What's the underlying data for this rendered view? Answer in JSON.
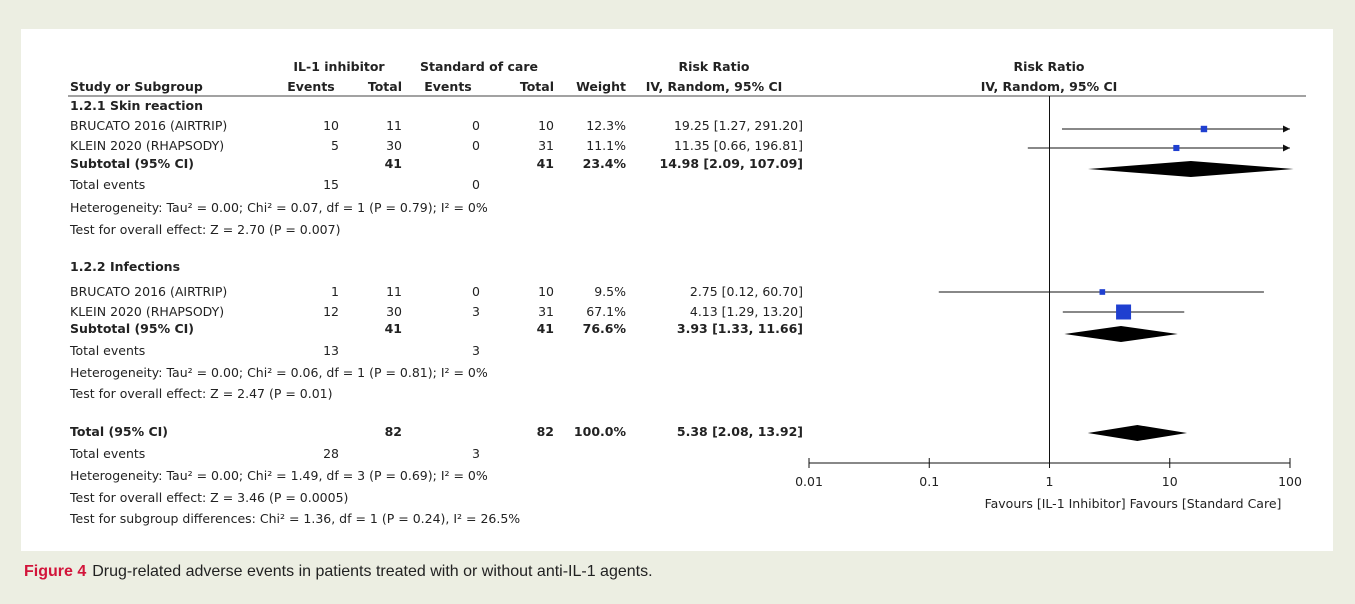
{
  "figure": {
    "label": "Figure 4",
    "caption": "Drug-related adverse events in patients treated with or without anti-IL-1 agents."
  },
  "table": {
    "header_groups": {
      "experimental": "IL-1 inhibitor",
      "control": "Standard of care",
      "effect": "Risk Ratio",
      "plot": "Risk Ratio"
    },
    "headers": {
      "study": "Study or Subgroup",
      "events": "Events",
      "total": "Total",
      "weight": "Weight",
      "method": "IV, Random, 95% CI",
      "plot_method": "IV, Random, 95% CI"
    },
    "groups": [
      {
        "title": "1.2.1 Skin reaction",
        "studies": [
          {
            "name": "BRUCATO 2016 (AIRTRIP)",
            "exp_events": "10",
            "exp_total": "11",
            "ctrl_events": "0",
            "ctrl_total": "10",
            "weight": "12.3%",
            "ci_text": "19.25 [1.27, 291.20]"
          },
          {
            "name": "KLEIN 2020 (RHAPSODY)",
            "exp_events": "5",
            "exp_total": "30",
            "ctrl_events": "0",
            "ctrl_total": "31",
            "weight": "11.1%",
            "ci_text": "11.35 [0.66, 196.81]"
          }
        ],
        "subtotal": {
          "label": "Subtotal (95% CI)",
          "exp_total": "41",
          "ctrl_total": "41",
          "weight": "23.4%",
          "ci_text": "14.98 [2.09, 107.09]"
        },
        "events": {
          "label": "Total events",
          "exp": "15",
          "ctrl": "0"
        },
        "heterogeneity": "Heterogeneity: Tau² = 0.00; Chi² = 0.07, df = 1 (P = 0.79); I² = 0%",
        "overall": "Test for overall effect: Z = 2.70 (P = 0.007)"
      },
      {
        "title": "1.2.2 Infections",
        "studies": [
          {
            "name": "BRUCATO 2016 (AIRTRIP)",
            "exp_events": "1",
            "exp_total": "11",
            "ctrl_events": "0",
            "ctrl_total": "10",
            "weight": "9.5%",
            "ci_text": "2.75 [0.12, 60.70]"
          },
          {
            "name": "KLEIN 2020 (RHAPSODY)",
            "exp_events": "12",
            "exp_total": "30",
            "ctrl_events": "3",
            "ctrl_total": "31",
            "weight": "67.1%",
            "ci_text": "4.13 [1.29, 13.20]"
          }
        ],
        "subtotal": {
          "label": "Subtotal (95% CI)",
          "exp_total": "41",
          "ctrl_total": "41",
          "weight": "76.6%",
          "ci_text": "3.93 [1.33, 11.66]"
        },
        "events": {
          "label": "Total events",
          "exp": "13",
          "ctrl": "3"
        },
        "heterogeneity": "Heterogeneity: Tau² = 0.00; Chi² = 0.06, df = 1 (P = 0.81); I² = 0%",
        "overall": "Test for overall effect: Z = 2.47 (P = 0.01)"
      }
    ],
    "total": {
      "label": "Total (95% CI)",
      "exp_total": "82",
      "ctrl_total": "82",
      "weight": "100.0%",
      "ci_text": "5.38 [2.08, 13.92]"
    },
    "total_events": {
      "label": "Total events",
      "exp": "28",
      "ctrl": "3"
    },
    "footer": [
      "Heterogeneity: Tau² = 0.00; Chi² = 1.49, df = 3 (P = 0.69); I² = 0%",
      "Test for overall effect: Z = 3.46 (P = 0.0005)",
      "Test for subgroup differences: Chi² = 1.36, df = 1 (P = 0.24), I² = 26.5%"
    ]
  },
  "colors": {
    "square": "#1f3fd0",
    "diamond": "#000000",
    "line": "#111111",
    "caption_label": "#d2143a"
  },
  "chart_data": {
    "type": "forest",
    "x_scale": "log",
    "xlim": [
      0.01,
      100
    ],
    "ticks": [
      0.01,
      0.1,
      1,
      10,
      100
    ],
    "tick_labels": [
      "0.01",
      "0.1",
      "1",
      "10",
      "100"
    ],
    "favours_left": "Favours [IL-1 Inhibitor]",
    "favours_right": "Favours [Standard Care]",
    "studies": [
      {
        "group": 0,
        "rr": 19.25,
        "lo": 1.27,
        "hi": 291.2,
        "weight": 12.3
      },
      {
        "group": 0,
        "rr": 11.35,
        "lo": 0.66,
        "hi": 196.81,
        "weight": 11.1
      },
      {
        "group": 1,
        "rr": 2.75,
        "lo": 0.12,
        "hi": 60.7,
        "weight": 9.5
      },
      {
        "group": 1,
        "rr": 4.13,
        "lo": 1.29,
        "hi": 13.2,
        "weight": 67.1
      }
    ],
    "diamonds": [
      {
        "label": "Subtotal 1.2.1",
        "rr": 14.98,
        "lo": 2.09,
        "hi": 107.09
      },
      {
        "label": "Subtotal 1.2.2",
        "rr": 3.93,
        "lo": 1.33,
        "hi": 11.66
      },
      {
        "label": "Total",
        "rr": 5.38,
        "lo": 2.08,
        "hi": 13.92
      }
    ]
  }
}
